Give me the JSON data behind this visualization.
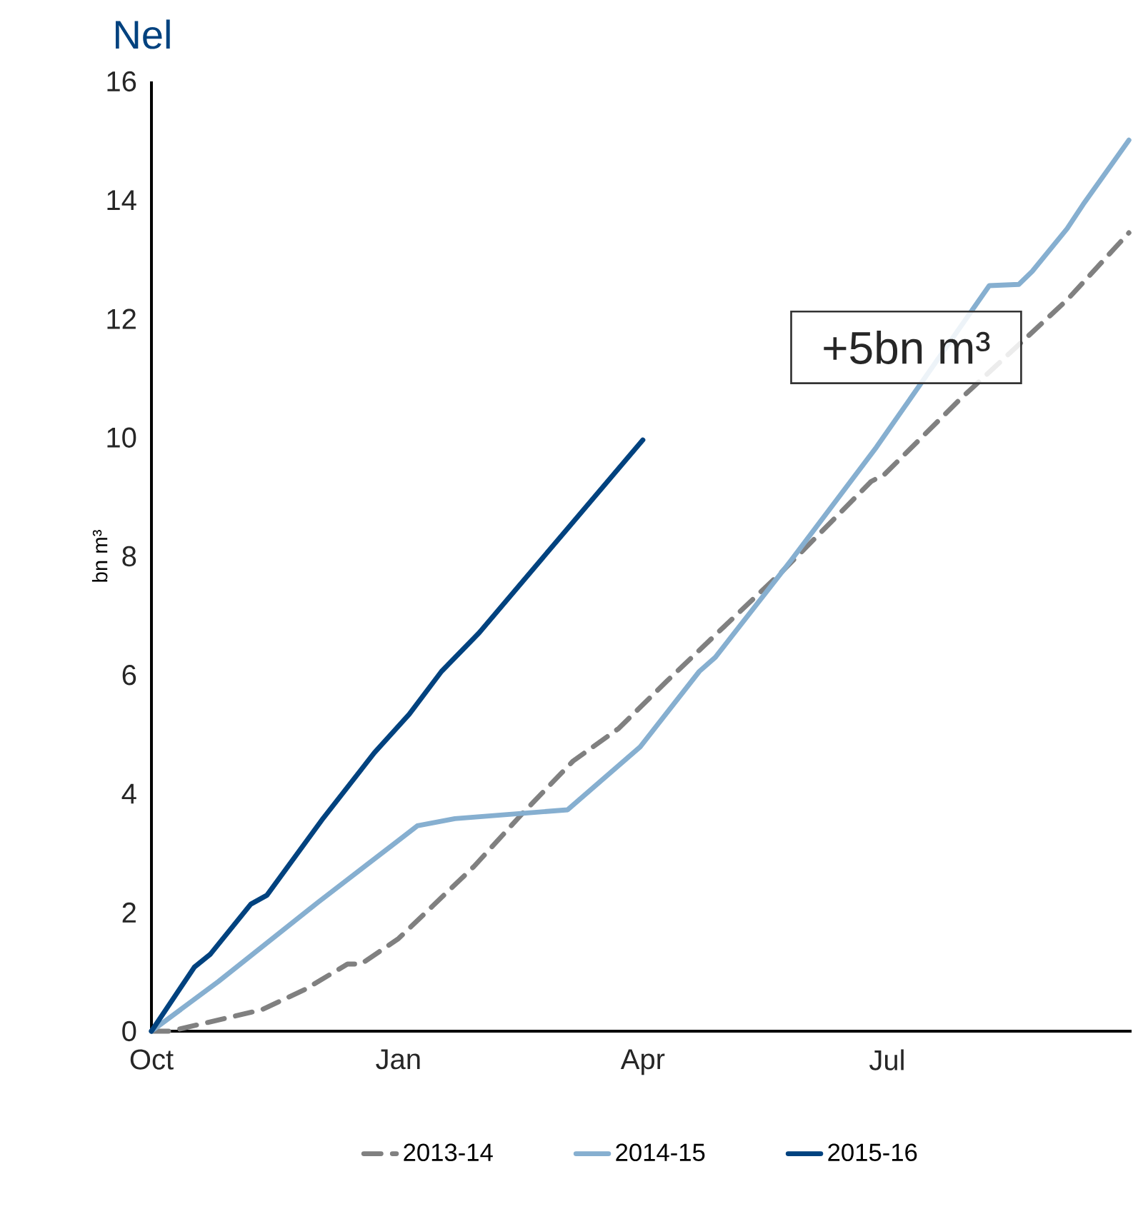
{
  "chart_data": {
    "type": "line",
    "title": "Nel",
    "ylabel": "bn m³",
    "xlim": [
      "2015-10-01",
      "2016-09-30"
    ],
    "ylim": [
      0,
      16
    ],
    "xticks": [
      {
        "value": "2015-10-01",
        "label": "Oct"
      },
      {
        "value": "2016-01-01",
        "label": "Jan"
      },
      {
        "value": "2016-04-01",
        "label": "Apr"
      },
      {
        "value": "2016-07-01",
        "label": "Jul"
      }
    ],
    "yticks": [
      0,
      2,
      4,
      6,
      8,
      10,
      12,
      14,
      16
    ],
    "grid": false,
    "legend": "bottom",
    "annotations": [
      "+5bn m³"
    ],
    "series": [
      {
        "name": "2013-14",
        "color": "#808080",
        "line_style": "dashed",
        "x": [
          "2015-10-01",
          "2015-10-08",
          "2015-11-11",
          "2015-11-27",
          "2015-12-13",
          "2015-12-18",
          "2016-01-01",
          "2016-01-29",
          "2016-02-16",
          "2016-03-06",
          "2016-03-23",
          "2016-04-10",
          "2016-05-23",
          "2016-06-25",
          "2016-06-30",
          "2016-07-28",
          "2016-09-06",
          "2016-09-29"
        ],
        "values": [
          0,
          0,
          0.36,
          0.7,
          1.13,
          1.13,
          1.56,
          2.77,
          3.66,
          4.55,
          5.1,
          5.9,
          7.75,
          9.26,
          9.38,
          10.64,
          12.32,
          13.45
        ]
      },
      {
        "name": "2014-15",
        "color": "#86afd0",
        "line_style": "solid",
        "x": [
          "2015-10-01",
          "2015-10-26",
          "2015-12-02",
          "2015-12-31",
          "2016-01-08",
          "2016-01-22",
          "2016-03-04",
          "2016-03-31",
          "2016-04-22",
          "2016-04-28",
          "2016-05-26",
          "2016-06-27",
          "2016-08-08",
          "2016-08-19",
          "2016-08-24",
          "2016-09-06",
          "2016-09-12",
          "2016-09-29"
        ],
        "values": [
          0,
          0.84,
          2.17,
          3.18,
          3.46,
          3.58,
          3.73,
          4.79,
          6.06,
          6.3,
          7.92,
          9.84,
          12.56,
          12.58,
          12.8,
          13.52,
          13.93,
          15.01
        ]
      },
      {
        "name": "2015-16",
        "color": "#00427f",
        "line_style": "solid",
        "x": [
          "2015-10-01",
          "2015-10-17",
          "2015-10-23",
          "2015-11-07",
          "2015-11-13",
          "2015-12-04",
          "2015-12-23",
          "2016-01-05",
          "2016-01-17",
          "2016-01-31",
          "2016-03-04",
          "2016-04-01"
        ],
        "values": [
          0,
          1.08,
          1.3,
          2.14,
          2.29,
          3.59,
          4.69,
          5.34,
          6.06,
          6.71,
          8.47,
          9.96
        ]
      }
    ]
  }
}
